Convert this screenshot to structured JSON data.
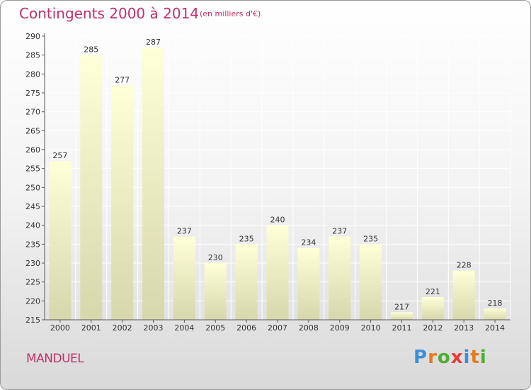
{
  "header": {
    "title": "Contingents 2000 à 2014",
    "subtitle": "(en milliers d'€)"
  },
  "footer": {
    "commune": "MANDUEL",
    "logo": [
      "P",
      "r",
      "o",
      "x",
      "i",
      "t",
      "i"
    ]
  },
  "colors": {
    "title": "#c0306a",
    "bar_light": "#ffffd8",
    "bar_dark": "#d7d7ac",
    "grid": "#ffffff"
  },
  "chart_data": {
    "type": "bar",
    "categories": [
      "2000",
      "2001",
      "2002",
      "2003",
      "2004",
      "2005",
      "2006",
      "2007",
      "2008",
      "2009",
      "2010",
      "2011",
      "2012",
      "2013",
      "2014"
    ],
    "values": [
      257,
      285,
      277,
      287,
      237,
      230,
      235,
      240,
      234,
      237,
      235,
      217,
      221,
      228,
      218
    ],
    "ylim": [
      215,
      290
    ],
    "ytick_step": 5,
    "grid": true,
    "data_labels": true
  }
}
